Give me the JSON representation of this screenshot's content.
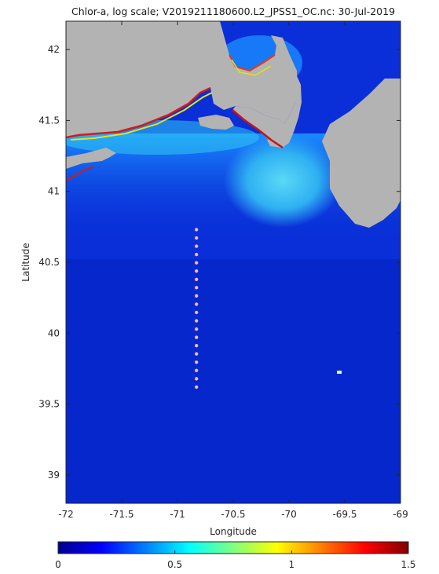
{
  "title": "Chlor-a, log scale; V2019211180600.L2_JPSS1_OC.nc: 30-Jul-2019",
  "xlabel": "Longitude",
  "ylabel": "Latitude",
  "x_ticks": [
    "-72",
    "-71.5",
    "-71",
    "-70.5",
    "-70",
    "-69.5",
    "-69"
  ],
  "y_ticks": [
    "42",
    "41.5",
    "41",
    "40.5",
    "40",
    "39.5",
    "39"
  ],
  "colorbar": {
    "ticks": [
      "0",
      "0.5",
      "1",
      "1.5"
    ],
    "range": [
      0,
      1.5
    ],
    "colormap": "jet"
  },
  "map": {
    "lon_range": [
      -72,
      -69
    ],
    "lat_range": [
      38.8,
      42.2
    ],
    "land_color": "#b3b3b3",
    "ocean_color": "#0a2fd8"
  },
  "station_line": {
    "lon": -70.83,
    "lat_start": 40.73,
    "lat_end": 39.62,
    "count": 20,
    "color": "#f2b6c6"
  }
}
